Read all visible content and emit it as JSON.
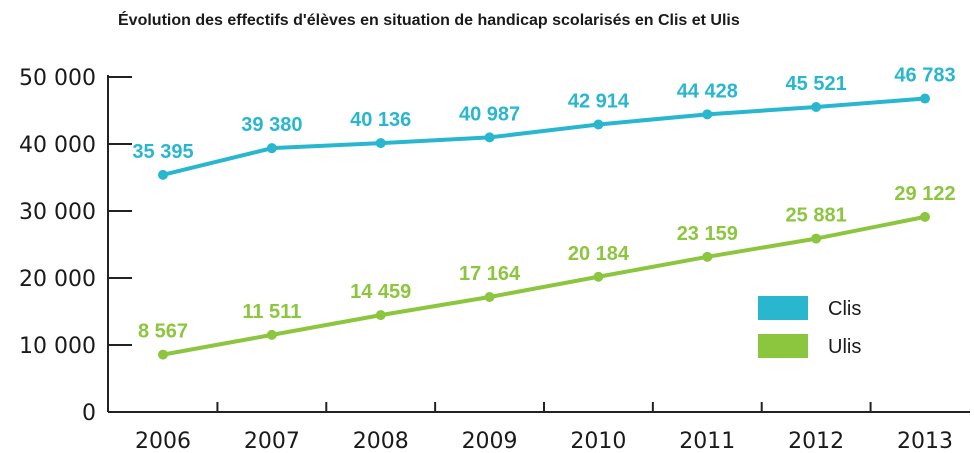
{
  "chart_data": {
    "type": "line",
    "title": "Évolution des effectifs d'élèves en situation de handicap scolarisés en Clis et Ulis",
    "x": [
      "2006",
      "2007",
      "2008",
      "2009",
      "2010",
      "2011",
      "2012",
      "2013"
    ],
    "yticks": [
      "0",
      "10 000",
      "20 000",
      "30 000",
      "40 000",
      "50 000"
    ],
    "ytick_values": [
      0,
      10000,
      20000,
      30000,
      40000,
      50000
    ],
    "ylim": [
      0,
      50000
    ],
    "grid": false,
    "legend_position": "right",
    "series": [
      {
        "name": "Clis",
        "color": "#29b6cf",
        "values": [
          35395,
          39380,
          40136,
          40987,
          42914,
          44428,
          45521,
          46783
        ],
        "labels": [
          "35 395",
          "39 380",
          "40 136",
          "40 987",
          "42 914",
          "44 428",
          "45 521",
          "46 783"
        ]
      },
      {
        "name": "Ulis",
        "color": "#8cc63f",
        "values": [
          8567,
          11511,
          14459,
          17164,
          20184,
          23159,
          25881,
          29122
        ],
        "labels": [
          "8 567",
          "11 511",
          "14 459",
          "17 164",
          "20 184",
          "23 159",
          "25 881",
          "29 122"
        ]
      }
    ]
  }
}
